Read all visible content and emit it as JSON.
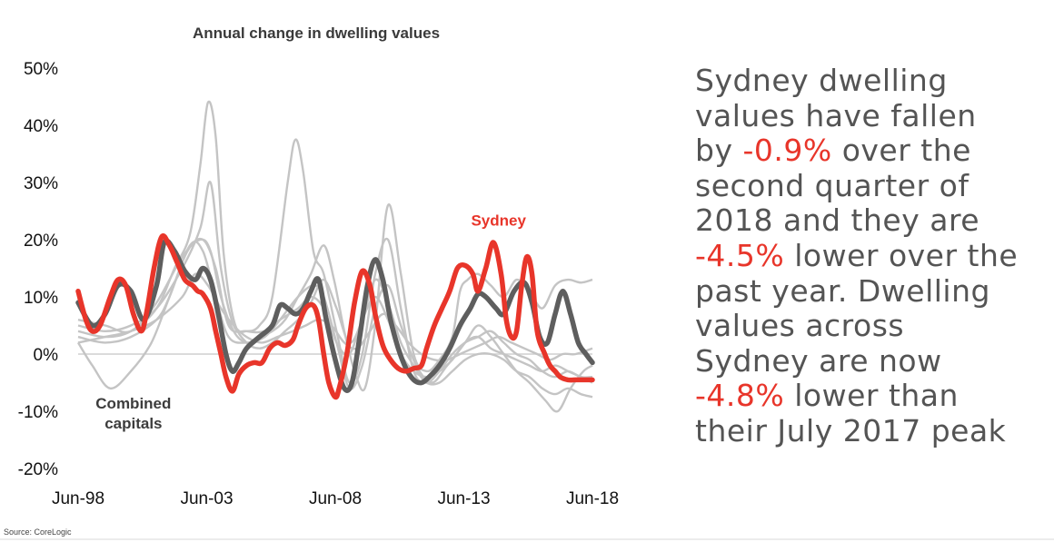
{
  "chart_data": {
    "type": "line",
    "title": "Annual change in dwelling values",
    "x_tick_labels": [
      "Jun-98",
      "Jun-03",
      "Jun-08",
      "Jun-13",
      "Jun-18"
    ],
    "x_ticks": [
      1998.45,
      2003.45,
      2008.45,
      2013.45,
      2018.45
    ],
    "xlim": [
      1998.45,
      2018.45
    ],
    "y_tick_labels": [
      "50%",
      "40%",
      "30%",
      "20%",
      "10%",
      "0%",
      "-10%",
      "-20%"
    ],
    "y_ticks": [
      50,
      40,
      30,
      20,
      10,
      0,
      -10,
      -20
    ],
    "ylim": [
      -20,
      50
    ],
    "grid": false,
    "zero_line": true,
    "series": [
      {
        "name": "Sydney",
        "color": "#e8352a",
        "x": [
          1998.45,
          1998.75,
          1999.0,
          1999.3,
          1999.7,
          2000.0,
          2000.3,
          2000.6,
          2000.9,
          2001.1,
          2001.4,
          2001.7,
          2002.0,
          2002.3,
          2002.6,
          2002.9,
          2003.1,
          2003.3,
          2003.6,
          2003.8,
          2004.0,
          2004.2,
          2004.45,
          2004.7,
          2005.0,
          2005.3,
          2005.6,
          2005.9,
          2006.2,
          2006.5,
          2006.8,
          2007.0,
          2007.3,
          2007.6,
          2007.8,
          2008.0,
          2008.2,
          2008.45,
          2008.6,
          2008.9,
          2009.2,
          2009.5,
          2009.8,
          2010.0,
          2010.3,
          2010.6,
          2010.9,
          2011.2,
          2011.5,
          2011.8,
          2012.0,
          2012.3,
          2012.6,
          2012.9,
          2013.2,
          2013.5,
          2013.8,
          2014.0,
          2014.3,
          2014.6,
          2014.9,
          2015.1,
          2015.3,
          2015.5,
          2015.7,
          2015.9,
          2016.1,
          2016.3,
          2016.6,
          2016.8,
          2017.0,
          2017.2,
          2017.5,
          2017.8,
          2018.1,
          2018.3,
          2018.45
        ],
        "y": [
          11,
          6,
          4,
          5,
          10,
          13,
          12,
          7,
          4,
          7,
          15,
          20.5,
          19,
          16,
          13,
          12,
          11,
          10.5,
          8,
          4,
          0,
          -4,
          -6.5,
          -3.5,
          -2,
          -1.5,
          -1.5,
          1,
          2,
          1.5,
          2.5,
          5,
          8,
          8.5,
          6,
          0,
          -5,
          -7.5,
          -6,
          0,
          9,
          14.5,
          12,
          7,
          1.5,
          -1,
          -2.5,
          -3,
          -2.5,
          -2,
          1,
          5,
          8,
          11,
          15,
          15.5,
          14,
          11,
          15,
          19.5,
          14,
          6,
          3,
          4,
          12,
          17,
          14,
          4,
          0,
          -2,
          -3,
          -4,
          -4.5,
          -4.5,
          -4.5,
          -4.5,
          -4.5
        ]
      },
      {
        "name": "Combined capitals",
        "color": "#5e5e5e",
        "x": [
          1998.45,
          1999.0,
          1999.5,
          2000.0,
          2000.5,
          2001.0,
          2001.5,
          2001.8,
          2002.2,
          2002.6,
          2003.0,
          2003.3,
          2003.6,
          2003.9,
          2004.2,
          2004.45,
          2004.7,
          2005.0,
          2005.5,
          2006.0,
          2006.3,
          2006.6,
          2006.9,
          2007.2,
          2007.5,
          2007.8,
          2008.1,
          2008.45,
          2008.8,
          2009.1,
          2009.4,
          2009.7,
          2010.0,
          2010.3,
          2010.6,
          2010.9,
          2011.2,
          2011.5,
          2011.8,
          2012.1,
          2012.5,
          2012.9,
          2013.3,
          2013.7,
          2014.0,
          2014.3,
          2014.7,
          2015.0,
          2015.4,
          2015.8,
          2016.1,
          2016.4,
          2016.7,
          2017.0,
          2017.3,
          2017.6,
          2017.9,
          2018.2,
          2018.45
        ],
        "y": [
          9,
          5,
          7,
          12,
          11,
          6,
          12,
          19.5,
          18,
          14.5,
          13,
          15,
          13,
          7,
          0,
          -3,
          -1.5,
          1,
          3,
          5,
          8.5,
          8,
          7,
          8,
          11,
          13,
          6,
          -1,
          -6,
          -5,
          3,
          12,
          16.5,
          13,
          6,
          1,
          -2.5,
          -4.5,
          -5,
          -4,
          -2,
          1,
          5,
          8,
          10.5,
          10,
          8,
          7,
          11,
          12.5,
          9,
          3,
          2,
          7,
          11,
          7,
          2,
          0,
          -1.5
        ]
      }
    ],
    "background_series": [
      {
        "x": [
          1998.45,
          1999.5,
          2000.5,
          2001.5,
          2002.0,
          2002.7,
          2003.3,
          2003.8,
          2004.3,
          2005.0,
          2005.7,
          2006.3,
          2007.0,
          2007.5,
          2008.0,
          2008.5,
          2009.0,
          2009.5,
          2010.0,
          2010.5,
          2011.0,
          2011.5,
          2012.0,
          2012.5,
          2013.0,
          2013.5,
          2014.0,
          2014.5,
          2015.0,
          2015.5,
          2016.0,
          2016.5,
          2017.0,
          2017.5,
          2018.0,
          2018.45
        ],
        "y": [
          3,
          2,
          3,
          6,
          10,
          18,
          20,
          15,
          5,
          4,
          4,
          6,
          8,
          10,
          8,
          2,
          0,
          6,
          10,
          6,
          0,
          -3,
          -4,
          -3,
          -1,
          2,
          3,
          1,
          0,
          -1,
          -2,
          -3,
          -2,
          -3,
          -4,
          -5
        ]
      },
      {
        "x": [
          1998.45,
          1999.5,
          2000.5,
          2001.5,
          2002.2,
          2002.8,
          2003.2,
          2003.5,
          2003.8,
          2004.1,
          2004.5,
          2005.0,
          2005.5,
          2006.0,
          2006.5,
          2007.0,
          2007.5,
          2008.0,
          2008.5,
          2009.0,
          2009.5,
          2010.0,
          2010.5,
          2011.0,
          2011.5,
          2012.0,
          2012.5,
          2013.0,
          2013.5,
          2014.0,
          2014.5,
          2015.0,
          2015.5,
          2016.0,
          2016.5,
          2017.0,
          2017.5,
          2018.0,
          2018.45
        ],
        "y": [
          4,
          3,
          4,
          8,
          15,
          21,
          33,
          44,
          38,
          18,
          6,
          2,
          1,
          2,
          4,
          6,
          9,
          13,
          8,
          2,
          6,
          13,
          9,
          2,
          -2,
          -5,
          -5,
          -3,
          -1,
          0,
          0,
          -1,
          -3,
          -4,
          -6,
          -7,
          -6,
          -7,
          -7.5
        ]
      },
      {
        "x": [
          1998.45,
          1999.5,
          2000.5,
          2001.5,
          2002.5,
          2003.2,
          2003.6,
          2004.0,
          2004.5,
          2005.0,
          2005.5,
          2006.0,
          2006.6,
          2006.9,
          2007.2,
          2007.6,
          2008.0,
          2008.5,
          2009.0,
          2009.5,
          2010.0,
          2010.5,
          2011.0,
          2011.5,
          2012.0,
          2012.5,
          2013.0,
          2013.5,
          2014.0,
          2014.5,
          2015.0,
          2015.5,
          2016.0,
          2016.5,
          2017.0,
          2017.5,
          2018.0,
          2018.45
        ],
        "y": [
          5,
          4,
          5,
          8,
          15,
          22,
          30,
          15,
          5,
          4,
          5,
          10,
          30,
          37.5,
          32,
          18,
          14,
          4,
          -5,
          0,
          14,
          20,
          8,
          -3,
          -5,
          -3,
          0,
          2,
          3,
          4,
          2,
          0,
          -1,
          -3,
          -4,
          -3,
          -4,
          -4
        ]
      },
      {
        "x": [
          1998.45,
          1999.0,
          1999.7,
          2000.5,
          2001.3,
          2002.0,
          2002.8,
          2003.3,
          2003.8,
          2004.3,
          2005.0,
          2005.7,
          2006.3,
          2007.0,
          2007.6,
          2008.0,
          2008.5,
          2009.0,
          2009.5,
          2010.0,
          2010.5,
          2011.0,
          2011.6,
          2012.2,
          2012.8,
          2013.5,
          2014.0,
          2014.5,
          2015.0,
          2015.5,
          2016.0,
          2016.6,
          2017.1,
          2017.6,
          2018.1,
          2018.45
        ],
        "y": [
          2,
          -2,
          -6,
          -3,
          2,
          10,
          19,
          18,
          10,
          3,
          2,
          3,
          6,
          10,
          12,
          10,
          2,
          -6,
          -2,
          8,
          12,
          5,
          -2,
          -5,
          -2,
          2,
          5,
          3,
          0,
          -3,
          -5,
          -8,
          -10,
          -6,
          -3,
          -2
        ]
      },
      {
        "x": [
          1998.45,
          1999.5,
          2000.5,
          2001.5,
          2002.5,
          2003.2,
          2003.6,
          2004.0,
          2004.5,
          2005.0,
          2005.5,
          2006.0,
          2006.5,
          2007.0,
          2007.5,
          2008.0,
          2008.4,
          2008.8,
          2009.2,
          2009.6,
          2010.0,
          2010.5,
          2011.0,
          2011.5,
          2012.0,
          2012.5,
          2013.0,
          2013.3,
          2013.6,
          2014.0,
          2014.5,
          2015.0,
          2015.5,
          2016.0,
          2016.5,
          2017.0,
          2017.5,
          2018.0,
          2018.45
        ],
        "y": [
          6,
          5,
          4,
          9,
          17,
          20,
          18,
          10,
          4,
          2,
          3,
          4,
          6,
          10,
          14,
          19,
          13,
          4,
          -3,
          -6,
          5,
          26,
          14,
          0,
          -3,
          -1,
          3,
          11,
          13,
          14,
          12,
          10,
          13,
          11,
          8,
          12,
          13,
          12.5,
          13
        ]
      },
      {
        "x": [
          1998.45,
          1999.5,
          2000.5,
          2001.5,
          2002.5,
          2003.0,
          2003.5,
          2004.0,
          2004.5,
          2005.0,
          2005.6,
          2006.2,
          2006.8,
          2007.3,
          2007.8,
          2008.3,
          2008.8,
          2009.3,
          2009.8,
          2010.3,
          2010.8,
          2011.3,
          2011.8,
          2012.3,
          2012.8,
          2013.3,
          2013.8,
          2014.3,
          2014.8,
          2015.3,
          2015.8,
          2016.3,
          2016.8,
          2017.3,
          2017.8,
          2018.45
        ],
        "y": [
          2,
          3,
          4,
          6,
          10,
          14,
          12,
          8,
          5,
          3,
          2,
          3,
          4,
          5,
          6,
          5,
          2,
          1,
          4,
          7,
          5,
          2,
          0,
          -1,
          -1,
          0,
          1,
          2,
          3,
          2,
          1,
          0,
          -1,
          0,
          0,
          1
        ]
      }
    ],
    "annotations": [
      {
        "text": "Sydney",
        "color": "#e8352a",
        "x": 2014.8,
        "y": 22.5
      },
      {
        "text": "Combined",
        "color": "#3c3c3c",
        "x": 2000.6,
        "y": -9.5
      },
      {
        "text": "capitals",
        "color": "#3c3c3c",
        "x": 2000.6,
        "y": -13
      }
    ],
    "gray_line_color": "#c4c4c4",
    "zero_line_color": "#cfcfcf"
  },
  "commentary": {
    "line1": "Sydney dwelling",
    "line2": "values have fallen",
    "line3_pre": "by ",
    "line3_hl": "-0.9%",
    "line3_post": " over the",
    "line4": "second quarter of",
    "line5": "2018 and they are",
    "line6_hl": "-4.5%",
    "line6_post": " lower over the",
    "line7": "past year. Dwelling",
    "line8": "values across",
    "line9": "Sydney are now",
    "line10_hl": "-4.8%",
    "line10_post": " lower than",
    "line11": "their July 2017 peak",
    "highlight_color": "#e8352a",
    "text_color": "#545454"
  },
  "source": "Source:  CoreLogic"
}
